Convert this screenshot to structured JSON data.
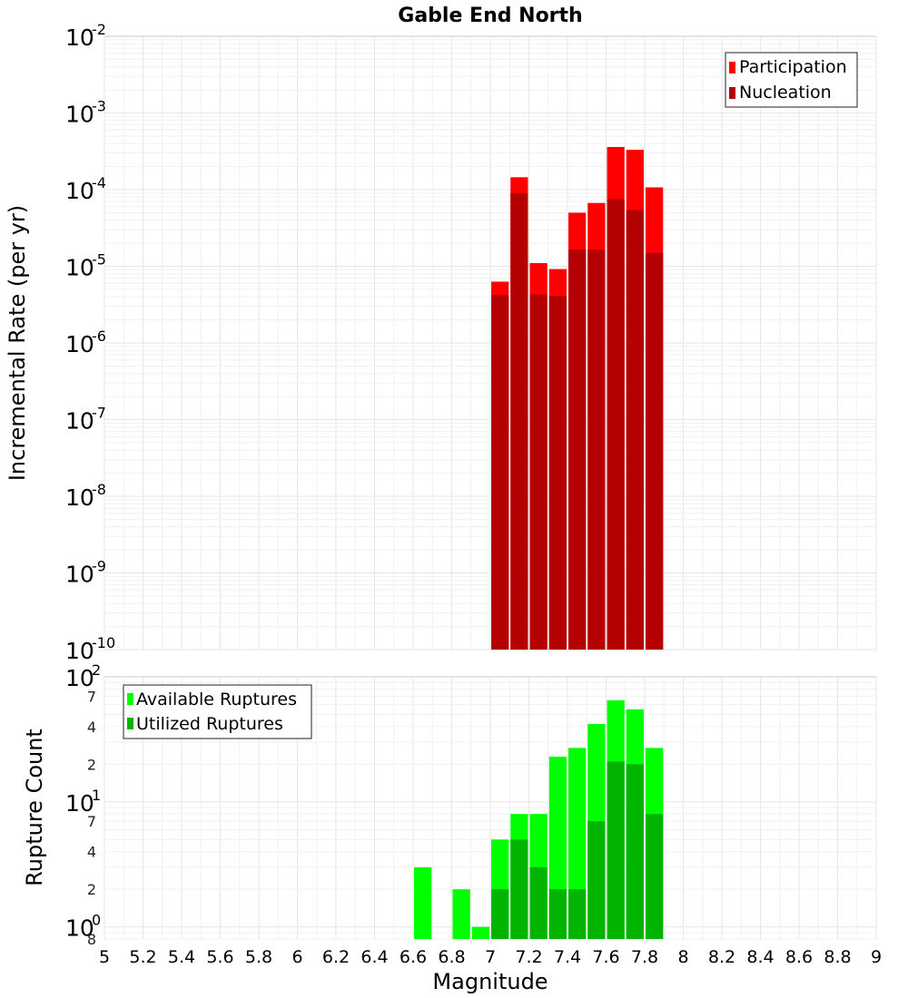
{
  "chart_data": [
    {
      "type": "bar",
      "title": "Gable End North",
      "ylabel": "Incremental Rate (per yr)",
      "xlabel": "",
      "yscale": "log",
      "ylim": [
        1e-10,
        0.01
      ],
      "xlim": [
        5,
        9
      ],
      "bin_width": 0.1,
      "yticks": [
        {
          "base": "10",
          "exp": "-10",
          "value": 1e-10
        },
        {
          "base": "10",
          "exp": "-9",
          "value": 1e-09
        },
        {
          "base": "10",
          "exp": "-8",
          "value": 1e-08
        },
        {
          "base": "10",
          "exp": "-7",
          "value": 1e-07
        },
        {
          "base": "10",
          "exp": "-6",
          "value": 1e-06
        },
        {
          "base": "10",
          "exp": "-5",
          "value": 1e-05
        },
        {
          "base": "10",
          "exp": "-4",
          "value": 0.0001
        },
        {
          "base": "10",
          "exp": "-3",
          "value": 0.001
        },
        {
          "base": "10",
          "exp": "-2",
          "value": 0.01
        }
      ],
      "legend_position": "top-right",
      "series": [
        {
          "name": "Participation",
          "color": "#ff0000",
          "x": [
            7.05,
            7.15,
            7.25,
            7.35,
            7.45,
            7.55,
            7.65,
            7.75,
            7.85
          ],
          "values": [
            6.3e-06,
            0.000145,
            1.1e-05,
            9.2e-06,
            5e-05,
            6.7e-05,
            0.00036,
            0.00033,
            0.000107
          ]
        },
        {
          "name": "Nucleation",
          "color": "#b40000",
          "x": [
            7.05,
            7.15,
            7.25,
            7.35,
            7.45,
            7.55,
            7.65,
            7.75,
            7.85
          ],
          "values": [
            4.2e-06,
            9e-05,
            4.3e-06,
            4.1e-06,
            1.65e-05,
            1.65e-05,
            7.5e-05,
            5.4e-05,
            1.5e-05
          ]
        }
      ]
    },
    {
      "type": "bar",
      "title": "",
      "ylabel": "Rupture Count",
      "xlabel": "Magnitude",
      "yscale": "log",
      "ylim": [
        0.8,
        100
      ],
      "xlim": [
        5,
        9
      ],
      "bin_width": 0.1,
      "yticks": [
        {
          "base": "10",
          "exp": "0",
          "value": 1
        },
        {
          "base": "10",
          "exp": "1",
          "value": 10
        },
        {
          "base": "10",
          "exp": "2",
          "value": 100
        }
      ],
      "yminor_labels": [
        {
          "label": "8",
          "value": 0.8
        },
        {
          "label": "2",
          "value": 2
        },
        {
          "label": "4",
          "value": 4
        },
        {
          "label": "7",
          "value": 7
        },
        {
          "label": "2",
          "value": 20
        },
        {
          "label": "4",
          "value": 40
        },
        {
          "label": "7",
          "value": 70
        }
      ],
      "xticks": [
        "5",
        "5.2",
        "5.4",
        "5.6",
        "5.8",
        "6",
        "6.2",
        "6.4",
        "6.6",
        "6.8",
        "7",
        "7.2",
        "7.4",
        "7.6",
        "7.8",
        "8",
        "8.2",
        "8.4",
        "8.6",
        "8.8",
        "9"
      ],
      "legend_position": "top-left",
      "series": [
        {
          "name": "Available Ruptures",
          "color": "#00ff00",
          "x": [
            6.65,
            6.85,
            6.95,
            7.05,
            7.15,
            7.25,
            7.35,
            7.45,
            7.55,
            7.65,
            7.75,
            7.85
          ],
          "values": [
            3,
            2,
            1,
            5,
            8,
            8,
            23,
            27,
            42,
            65,
            55,
            27
          ]
        },
        {
          "name": "Utilized Ruptures",
          "color": "#00b400",
          "x": [
            7.05,
            7.15,
            7.25,
            7.35,
            7.45,
            7.55,
            7.65,
            7.75,
            7.85
          ],
          "values": [
            2,
            5,
            3,
            2,
            2,
            7,
            21,
            20,
            8
          ]
        }
      ]
    }
  ]
}
